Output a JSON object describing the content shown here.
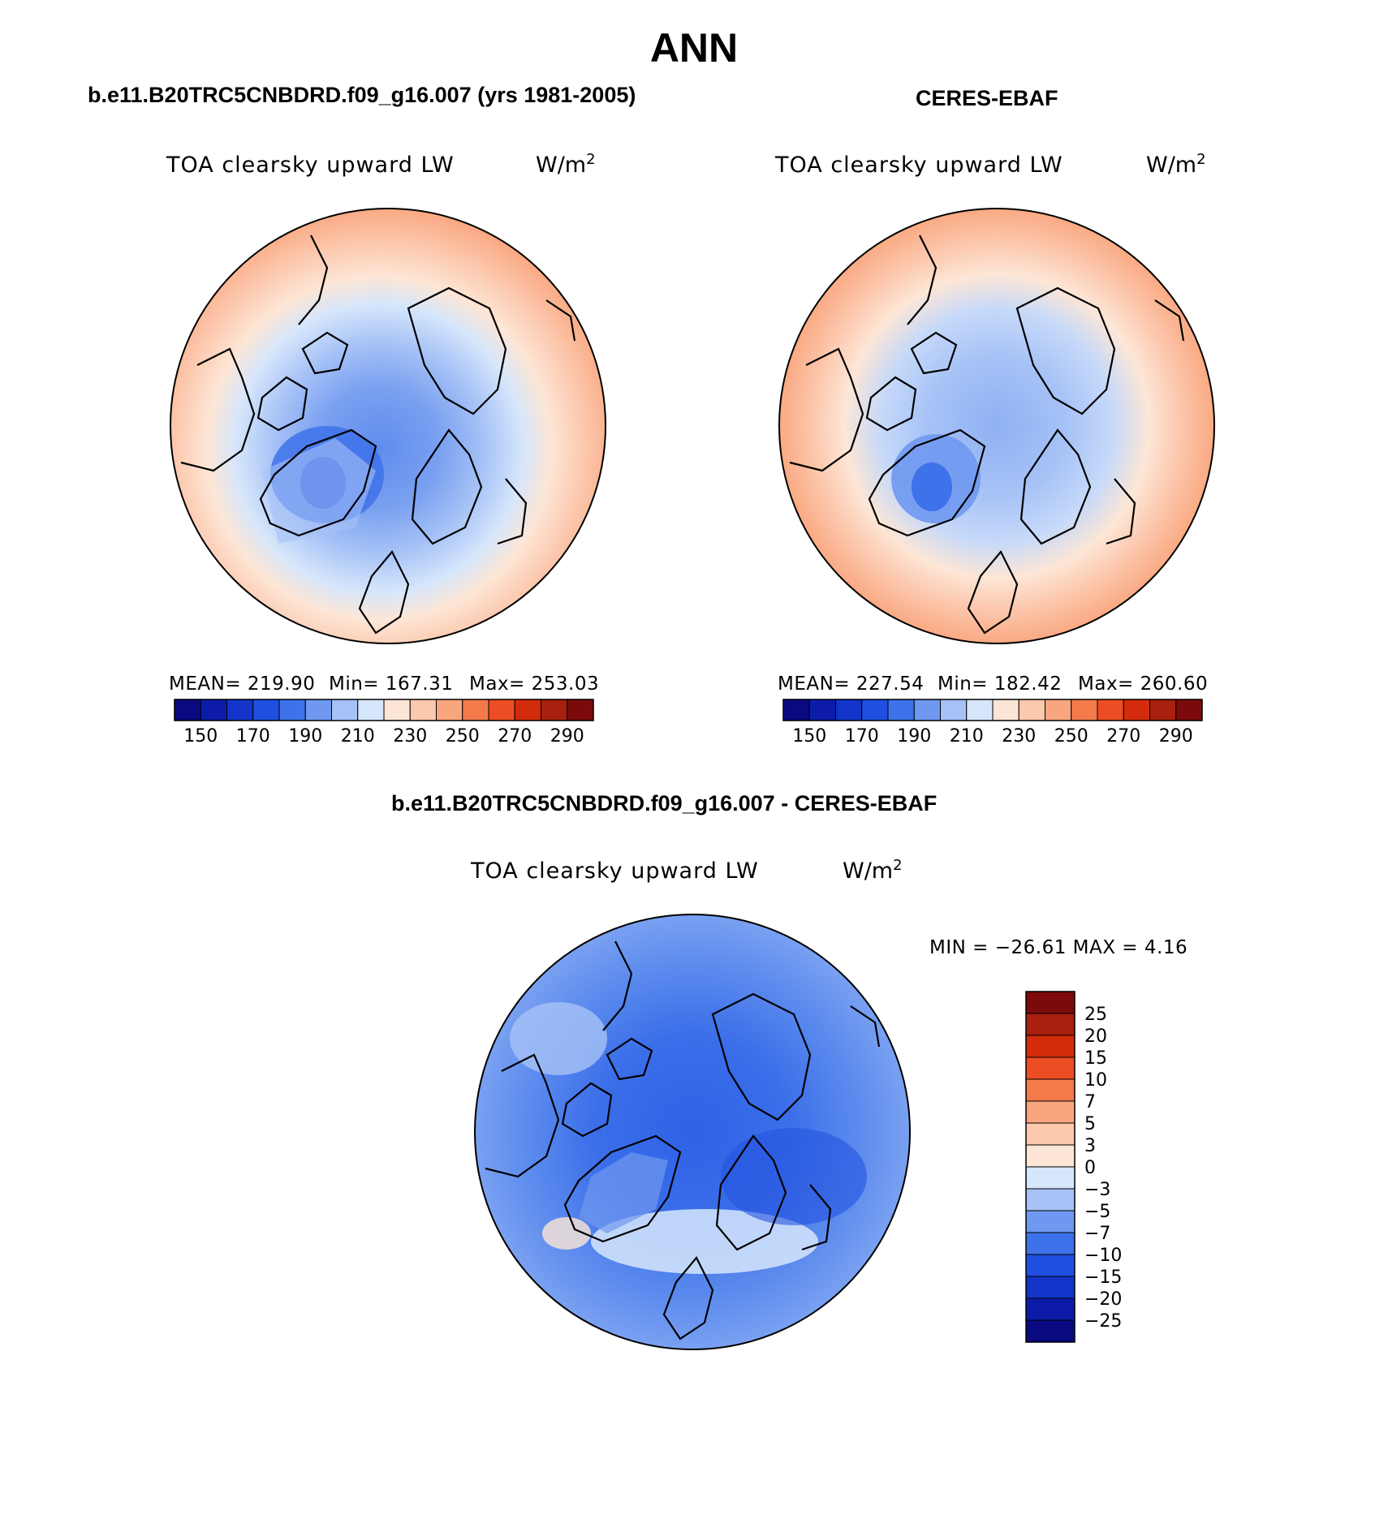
{
  "page": {
    "title": "ANN",
    "diff_title": "b.e11.B20TRC5CNBDRD.f09_g16.007 - CERES-EBAF"
  },
  "panels": {
    "model": {
      "title": "b.e11.B20TRC5CNBDRD.f09_g16.007 (yrs 1981-2005)",
      "variable": "TOA clearsky upward LW",
      "unit_base": "W/m",
      "unit_exp": "2",
      "mean_text": "MEAN= 219.90",
      "min_text": "Min= 167.31",
      "max_text": "Max= 253.03"
    },
    "obs": {
      "title": "CERES-EBAF",
      "variable": "TOA clearsky upward LW",
      "unit_base": "W/m",
      "unit_exp": "2",
      "mean_text": "MEAN= 227.54",
      "min_text": "Min= 182.42",
      "max_text": "Max= 260.60"
    },
    "diff": {
      "variable": "TOA clearsky upward LW",
      "unit_base": "W/m",
      "unit_exp": "2",
      "minmax_text": "MIN = −26.61 MAX =    4.16"
    }
  },
  "colorbars": {
    "absolute": {
      "colors": [
        "#0a0a80",
        "#0c1ca8",
        "#1234c8",
        "#1f4fe0",
        "#3e72ea",
        "#6f98f0",
        "#a6c2f6",
        "#d6e6fb",
        "#fde6d6",
        "#fcc8ae",
        "#f9a67e",
        "#f47a4c",
        "#ec4d22",
        "#d32c0c",
        "#a8200e",
        "#7c0a0a"
      ],
      "labels": [
        "150",
        "170",
        "190",
        "210",
        "230",
        "250",
        "270",
        "290"
      ]
    },
    "difference": {
      "colors": [
        "#0a0a80",
        "#0c1ca8",
        "#1234c8",
        "#1f4fe0",
        "#3e72ea",
        "#6f98f0",
        "#a6c2f6",
        "#d6e6fb",
        "#fde6d6",
        "#fcc8ae",
        "#f9a67e",
        "#f47a4c",
        "#ec4d22",
        "#d32c0c",
        "#a8200e",
        "#7c0a0a"
      ],
      "labels": [
        "25",
        "20",
        "15",
        "10",
        "7",
        "5",
        "3",
        "0",
        "−3",
        "−5",
        "−7",
        "−10",
        "−15",
        "−20",
        "−25"
      ]
    }
  }
}
